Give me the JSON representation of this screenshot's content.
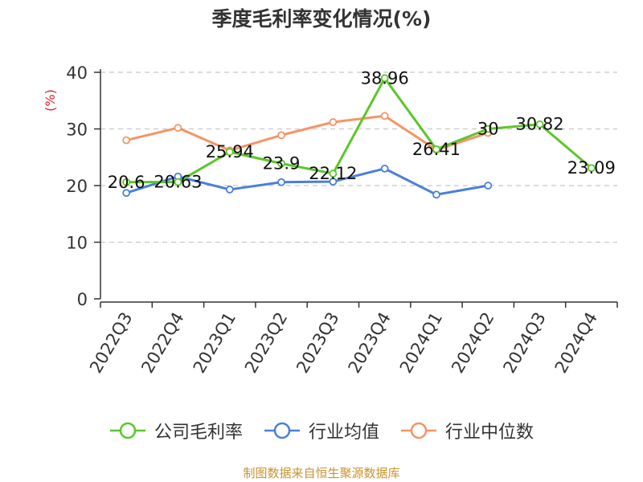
{
  "chart_data": {
    "type": "line",
    "title": "季度毛利率变化情况(%)",
    "ylabel": "(%)",
    "xlabel": "",
    "categories": [
      "2022Q3",
      "2022Q4",
      "2023Q1",
      "2023Q2",
      "2023Q3",
      "2023Q4",
      "2024Q1",
      "2024Q2",
      "2024Q3",
      "2024Q4"
    ],
    "yticks": [
      "0",
      "10",
      "20",
      "30",
      "40"
    ],
    "ylim": [
      0,
      40
    ],
    "grid": true,
    "legend_position": "bottom",
    "series": [
      {
        "name": "公司毛利率",
        "color": "#5cc62a",
        "values": [
          20.6,
          20.63,
          25.94,
          23.9,
          22.12,
          38.96,
          26.41,
          30,
          30.82,
          23.09
        ],
        "labels": [
          "20.6",
          "20.63",
          "25.94",
          "23.9",
          "22.12",
          "38.96",
          "26.41",
          "30",
          "30.82",
          "23.09"
        ]
      },
      {
        "name": "行业均值",
        "color": "#4b7fd9",
        "values": [
          18.7,
          21.6,
          19.3,
          20.6,
          20.7,
          23.0,
          18.4,
          20.0,
          null,
          null
        ]
      },
      {
        "name": "行业中位数",
        "color": "#f59465",
        "values": [
          28.0,
          30.2,
          26.2,
          28.9,
          31.2,
          32.3,
          26.3,
          29.3,
          null,
          null
        ]
      }
    ]
  },
  "source_note": "制图数据来自恒生聚源数据库"
}
